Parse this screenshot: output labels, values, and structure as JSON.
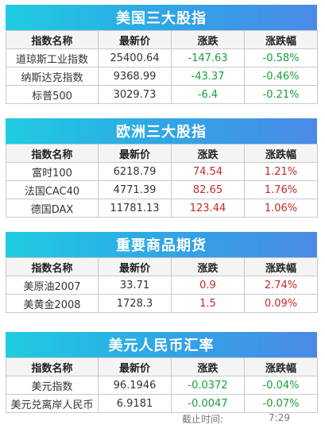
{
  "headers": [
    "指数名称",
    "最新价",
    "涨跌",
    "涨跌幅"
  ],
  "sections": [
    {
      "title": "美国三大股指",
      "rows": [
        {
          "name": "道琼斯工业指数",
          "price": "25400.64",
          "change": "-147.63",
          "pct": "-0.58%",
          "dir": "down"
        },
        {
          "name": "纳斯达克指数",
          "price": "9368.99",
          "change": "-43.37",
          "pct": "-0.46%",
          "dir": "down"
        },
        {
          "name": "标普500",
          "price": "3029.73",
          "change": "-6.4",
          "pct": "-0.21%",
          "dir": "down"
        }
      ]
    },
    {
      "title": "欧洲三大股指",
      "rows": [
        {
          "name": "富时100",
          "price": "6218.79",
          "change": "74.54",
          "pct": "1.21%",
          "dir": "up"
        },
        {
          "name": "法国CAC40",
          "price": "4771.39",
          "change": "82.65",
          "pct": "1.76%",
          "dir": "up"
        },
        {
          "name": "德国DAX",
          "price": "11781.13",
          "change": "123.44",
          "pct": "1.06%",
          "dir": "up"
        }
      ]
    },
    {
      "title": "重要商品期货",
      "rows": [
        {
          "name": "美原油2007",
          "price": "33.71",
          "change": "0.9",
          "pct": "2.74%",
          "dir": "up"
        },
        {
          "name": "美黄金2008",
          "price": "1728.3",
          "change": "1.5",
          "pct": "0.09%",
          "dir": "up"
        }
      ]
    },
    {
      "title": "美元人民币汇率",
      "rows": [
        {
          "name": "美元指数",
          "price": "96.1946",
          "change": "-0.0372",
          "pct": "-0.04%",
          "dir": "down"
        },
        {
          "name": "美元兑离岸人民币",
          "price": "6.9181",
          "change": "-0.0047",
          "pct": "-0.07%",
          "dir": "down"
        }
      ]
    }
  ],
  "footer": {
    "label": "截止时间:",
    "time": "7:29"
  },
  "colors": {
    "up": "#c62828",
    "down": "#1a9e3a",
    "header_gradient": [
      "#1fcce0",
      "#4a8ae6"
    ]
  }
}
